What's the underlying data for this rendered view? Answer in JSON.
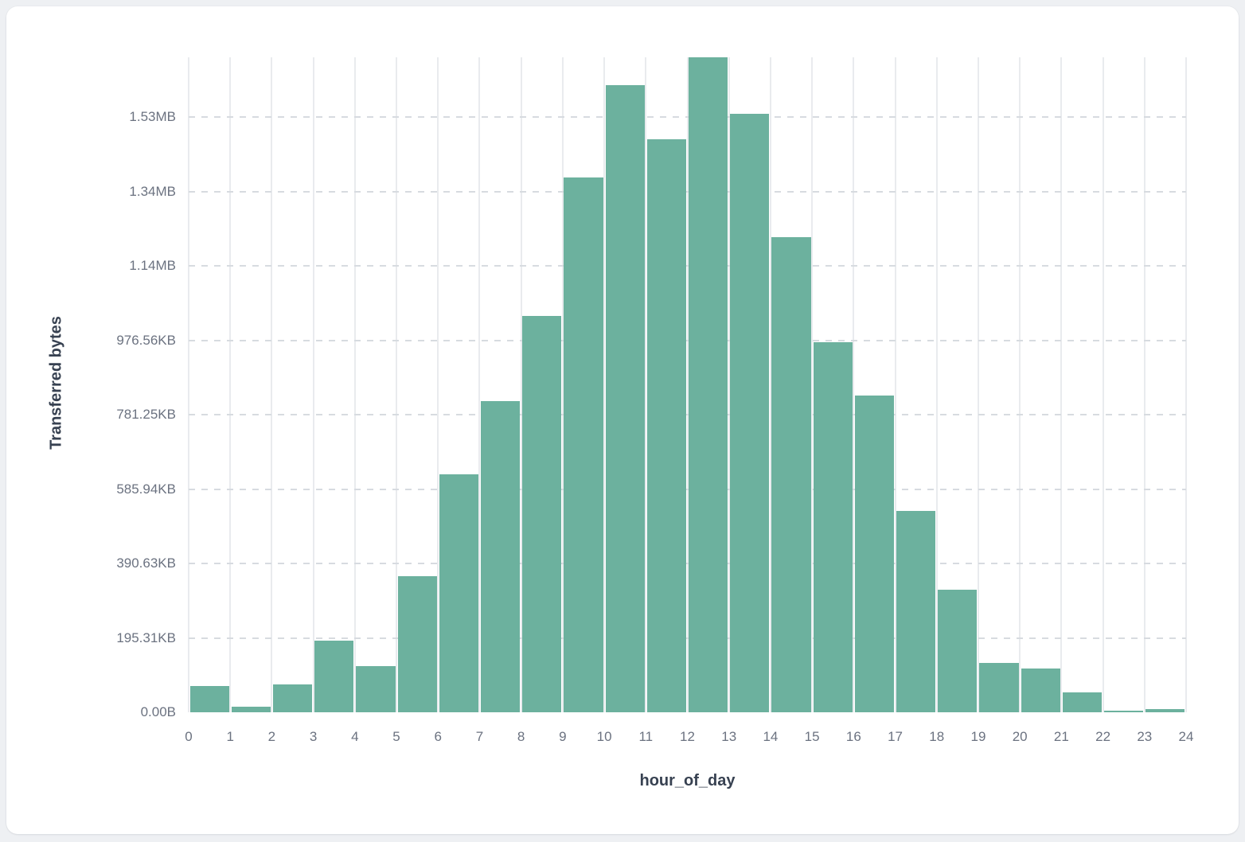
{
  "chart_data": {
    "type": "bar",
    "title": "",
    "xlabel": "hour_of_day",
    "ylabel": "Transferred bytes",
    "categories": [
      0,
      1,
      2,
      3,
      4,
      5,
      6,
      7,
      8,
      9,
      10,
      11,
      12,
      13,
      14,
      15,
      16,
      17,
      18,
      19,
      20,
      21,
      22,
      23
    ],
    "values": [
      71000,
      14000,
      74000,
      193000,
      124000,
      366000,
      640000,
      837000,
      1066000,
      1439000,
      1687000,
      1540000,
      1761000,
      1610000,
      1278000,
      994000,
      852000,
      542000,
      329000,
      133000,
      118000,
      53000,
      4000,
      9500
    ],
    "values_unit": "bytes",
    "x_tick_labels": [
      "0",
      "1",
      "2",
      "3",
      "4",
      "5",
      "6",
      "7",
      "8",
      "9",
      "10",
      "11",
      "12",
      "13",
      "14",
      "15",
      "16",
      "17",
      "18",
      "19",
      "20",
      "21",
      "22",
      "23",
      "24"
    ],
    "y_ticks": [
      {
        "label": "0.00B",
        "value": 0
      },
      {
        "label": "195.31KB",
        "value": 200000
      },
      {
        "label": "390.63KB",
        "value": 400000
      },
      {
        "label": "585.94KB",
        "value": 600000
      },
      {
        "label": "781.25KB",
        "value": 800000
      },
      {
        "label": "976.56KB",
        "value": 1000000
      },
      {
        "label": "1.14MB",
        "value": 1200000
      },
      {
        "label": "1.34MB",
        "value": 1400000
      },
      {
        "label": "1.53MB",
        "value": 1600000
      }
    ],
    "xlim": [
      0,
      24
    ],
    "ylim": [
      0,
      1761000
    ],
    "grid": {
      "vertical": "solid",
      "horizontal": "dashed"
    },
    "legend_position": "none",
    "colors": {
      "bar": "#6CB19E",
      "v_gridline": "#e9ebee",
      "h_gridline": "#d7dbe0",
      "tick_label": "#6b7280",
      "axis_title": "#374151",
      "page_background": "#eef0f3",
      "card_background": "#ffffff"
    }
  }
}
